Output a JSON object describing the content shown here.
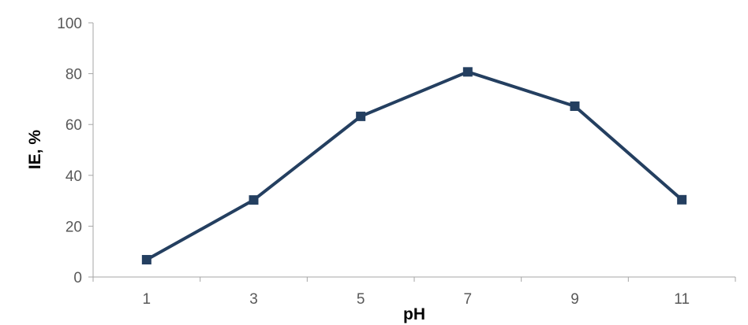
{
  "chart_data": {
    "type": "line",
    "title": "",
    "xlabel": "pH",
    "ylabel": "IE, %",
    "categories": [
      "1",
      "3",
      "5",
      "7",
      "9",
      "11"
    ],
    "x": [
      1,
      3,
      5,
      7,
      9,
      11
    ],
    "series": [
      {
        "values": [
          6.8,
          30.3,
          63.2,
          80.7,
          67.2,
          30.4
        ],
        "color": "#243F60",
        "marker": "square"
      }
    ],
    "ylim": [
      0,
      100
    ],
    "yticks": [
      0,
      20,
      40,
      60,
      80,
      100
    ],
    "grid": false,
    "legend": "none",
    "colors": {
      "line": "#243F60",
      "axis": "#A6A6A6",
      "tick_text": "#595959"
    }
  }
}
